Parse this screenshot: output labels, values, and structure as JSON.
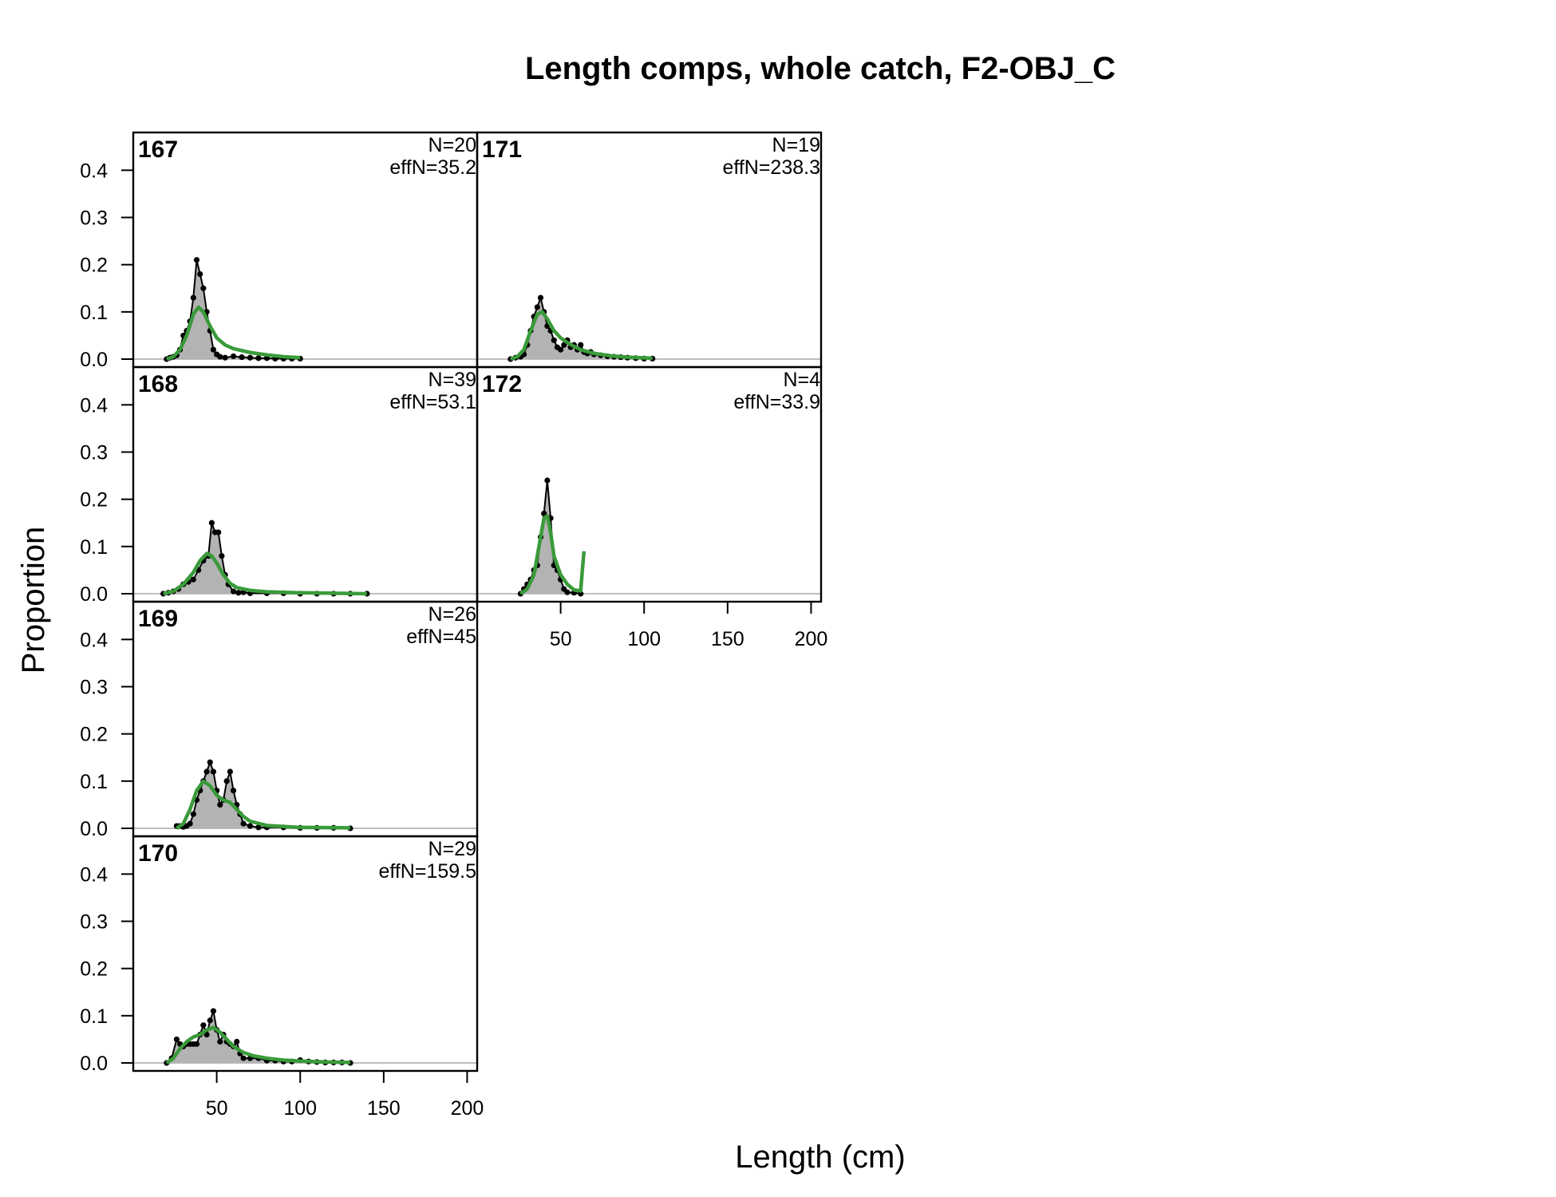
{
  "chart_data": {
    "type": "line",
    "title": "Length comps, whole catch, F2-OBJ_C",
    "xlabel": "Length (cm)",
    "ylabel": "Proportion",
    "xlim": [
      0,
      206
    ],
    "ylim": [
      0,
      0.48
    ],
    "xticks": [
      50,
      100,
      150,
      200
    ],
    "xtick_labels": [
      "50",
      "100",
      "150",
      "200"
    ],
    "yticks": [
      0.0,
      0.1,
      0.2,
      0.3,
      0.4
    ],
    "ytick_labels": [
      "0.0",
      "0.1",
      "0.2",
      "0.3",
      "0.4"
    ],
    "colors": {
      "observed_fill": "#b3b3b3",
      "observed_line": "#000000",
      "expected_line": "#3a9a3a",
      "zero_line": "#bebebe"
    },
    "panels": [
      {
        "year": "167",
        "n_label": "N=20",
        "effn_label": "effN=35.2",
        "observed": [
          [
            20,
            0
          ],
          [
            22,
            0.003
          ],
          [
            24,
            0.005
          ],
          [
            26,
            0.008
          ],
          [
            28,
            0.02
          ],
          [
            30,
            0.05
          ],
          [
            32,
            0.06
          ],
          [
            34,
            0.08
          ],
          [
            36,
            0.13
          ],
          [
            38,
            0.21
          ],
          [
            40,
            0.18
          ],
          [
            42,
            0.15
          ],
          [
            44,
            0.1
          ],
          [
            46,
            0.06
          ],
          [
            48,
            0.02
          ],
          [
            50,
            0.01
          ],
          [
            52,
            0.005
          ],
          [
            55,
            0.003
          ],
          [
            60,
            0.006
          ],
          [
            65,
            0.004
          ],
          [
            70,
            0.003
          ],
          [
            75,
            0.002
          ],
          [
            80,
            0.002
          ],
          [
            85,
            0.001
          ],
          [
            90,
            0.001
          ],
          [
            95,
            0.001
          ],
          [
            100,
            0.001
          ]
        ],
        "expected": [
          [
            20,
            0
          ],
          [
            24,
            0.005
          ],
          [
            28,
            0.02
          ],
          [
            32,
            0.05
          ],
          [
            36,
            0.095
          ],
          [
            39,
            0.11
          ],
          [
            42,
            0.1
          ],
          [
            46,
            0.07
          ],
          [
            50,
            0.045
          ],
          [
            55,
            0.03
          ],
          [
            60,
            0.022
          ],
          [
            65,
            0.018
          ],
          [
            70,
            0.014
          ],
          [
            80,
            0.009
          ],
          [
            90,
            0.005
          ],
          [
            100,
            0.003
          ]
        ]
      },
      {
        "year": "168",
        "n_label": "N=39",
        "effn_label": "effN=53.1",
        "observed": [
          [
            18,
            0
          ],
          [
            21,
            0.002
          ],
          [
            24,
            0.005
          ],
          [
            27,
            0.01
          ],
          [
            30,
            0.02
          ],
          [
            33,
            0.025
          ],
          [
            36,
            0.03
          ],
          [
            39,
            0.05
          ],
          [
            42,
            0.07
          ],
          [
            45,
            0.08
          ],
          [
            47,
            0.15
          ],
          [
            49,
            0.13
          ],
          [
            51,
            0.13
          ],
          [
            53,
            0.08
          ],
          [
            55,
            0.04
          ],
          [
            57,
            0.02
          ],
          [
            60,
            0.005
          ],
          [
            63,
            0.002
          ],
          [
            66,
            0.003
          ],
          [
            70,
            0.001
          ],
          [
            80,
            0.001
          ],
          [
            90,
            0.001
          ],
          [
            100,
            0
          ],
          [
            110,
            0
          ],
          [
            120,
            0
          ],
          [
            130,
            0
          ],
          [
            140,
            0
          ]
        ],
        "expected": [
          [
            18,
            0
          ],
          [
            24,
            0.005
          ],
          [
            30,
            0.02
          ],
          [
            36,
            0.045
          ],
          [
            40,
            0.07
          ],
          [
            44,
            0.085
          ],
          [
            47,
            0.08
          ],
          [
            50,
            0.065
          ],
          [
            54,
            0.04
          ],
          [
            58,
            0.022
          ],
          [
            62,
            0.013
          ],
          [
            70,
            0.007
          ],
          [
            80,
            0.004
          ],
          [
            100,
            0.002
          ],
          [
            140,
            0
          ]
        ]
      },
      {
        "year": "169",
        "n_label": "N=26",
        "effn_label": "effN=45",
        "observed": [
          [
            26,
            0.005
          ],
          [
            28,
            0.005
          ],
          [
            30,
            0.003
          ],
          [
            32,
            0.005
          ],
          [
            34,
            0.01
          ],
          [
            36,
            0.03
          ],
          [
            38,
            0.06
          ],
          [
            40,
            0.08
          ],
          [
            42,
            0.1
          ],
          [
            44,
            0.12
          ],
          [
            46,
            0.14
          ],
          [
            48,
            0.12
          ],
          [
            50,
            0.08
          ],
          [
            52,
            0.05
          ],
          [
            54,
            0.06
          ],
          [
            56,
            0.1
          ],
          [
            58,
            0.12
          ],
          [
            60,
            0.08
          ],
          [
            62,
            0.05
          ],
          [
            64,
            0.03
          ],
          [
            66,
            0.01
          ],
          [
            70,
            0.005
          ],
          [
            75,
            0.002
          ],
          [
            80,
            0.002
          ],
          [
            90,
            0.002
          ],
          [
            100,
            0.001
          ],
          [
            110,
            0.001
          ],
          [
            120,
            0.001
          ],
          [
            130,
            0
          ]
        ],
        "expected": [
          [
            26,
            0
          ],
          [
            30,
            0.01
          ],
          [
            34,
            0.04
          ],
          [
            38,
            0.08
          ],
          [
            42,
            0.1
          ],
          [
            46,
            0.09
          ],
          [
            50,
            0.07
          ],
          [
            54,
            0.06
          ],
          [
            58,
            0.055
          ],
          [
            62,
            0.04
          ],
          [
            66,
            0.025
          ],
          [
            70,
            0.015
          ],
          [
            80,
            0.006
          ],
          [
            100,
            0.002
          ],
          [
            130,
            0.001
          ]
        ]
      },
      {
        "year": "170",
        "n_label": "N=29",
        "effn_label": "effN=159.5",
        "observed": [
          [
            20,
            0
          ],
          [
            23,
            0.01
          ],
          [
            26,
            0.05
          ],
          [
            28,
            0.04
          ],
          [
            30,
            0.035
          ],
          [
            32,
            0.04
          ],
          [
            34,
            0.04
          ],
          [
            36,
            0.04
          ],
          [
            38,
            0.04
          ],
          [
            40,
            0.06
          ],
          [
            42,
            0.08
          ],
          [
            44,
            0.06
          ],
          [
            46,
            0.09
          ],
          [
            48,
            0.11
          ],
          [
            50,
            0.07
          ],
          [
            52,
            0.045
          ],
          [
            54,
            0.06
          ],
          [
            56,
            0.045
          ],
          [
            58,
            0.04
          ],
          [
            60,
            0.035
          ],
          [
            62,
            0.045
          ],
          [
            64,
            0.02
          ],
          [
            66,
            0.01
          ],
          [
            70,
            0.01
          ],
          [
            75,
            0.01
          ],
          [
            80,
            0.005
          ],
          [
            85,
            0.005
          ],
          [
            90,
            0.003
          ],
          [
            95,
            0.003
          ],
          [
            100,
            0.006
          ],
          [
            105,
            0.003
          ],
          [
            110,
            0.002
          ],
          [
            115,
            0.001
          ],
          [
            120,
            0.001
          ],
          [
            125,
            0.001
          ],
          [
            130,
            0
          ]
        ],
        "expected": [
          [
            20,
            0
          ],
          [
            24,
            0.01
          ],
          [
            28,
            0.03
          ],
          [
            32,
            0.045
          ],
          [
            36,
            0.055
          ],
          [
            40,
            0.06
          ],
          [
            44,
            0.07
          ],
          [
            48,
            0.075
          ],
          [
            52,
            0.065
          ],
          [
            56,
            0.05
          ],
          [
            60,
            0.035
          ],
          [
            66,
            0.022
          ],
          [
            72,
            0.015
          ],
          [
            80,
            0.01
          ],
          [
            90,
            0.006
          ],
          [
            100,
            0.004
          ],
          [
            115,
            0.002
          ],
          [
            130,
            0.001
          ]
        ]
      },
      {
        "year": "171",
        "n_label": "N=19",
        "effn_label": "effN=238.3",
        "observed": [
          [
            20,
            0
          ],
          [
            23,
            0.003
          ],
          [
            26,
            0.005
          ],
          [
            28,
            0.01
          ],
          [
            30,
            0.03
          ],
          [
            32,
            0.06
          ],
          [
            34,
            0.09
          ],
          [
            36,
            0.11
          ],
          [
            38,
            0.13
          ],
          [
            40,
            0.1
          ],
          [
            42,
            0.07
          ],
          [
            44,
            0.06
          ],
          [
            46,
            0.04
          ],
          [
            48,
            0.025
          ],
          [
            50,
            0.02
          ],
          [
            52,
            0.03
          ],
          [
            54,
            0.04
          ],
          [
            56,
            0.025
          ],
          [
            58,
            0.03
          ],
          [
            60,
            0.02
          ],
          [
            62,
            0.03
          ],
          [
            64,
            0.015
          ],
          [
            66,
            0.012
          ],
          [
            68,
            0.015
          ],
          [
            70,
            0.01
          ],
          [
            74,
            0.008
          ],
          [
            78,
            0.006
          ],
          [
            82,
            0.005
          ],
          [
            86,
            0.004
          ],
          [
            90,
            0.003
          ],
          [
            95,
            0.002
          ],
          [
            100,
            0.001
          ],
          [
            105,
            0.001
          ]
        ],
        "expected": [
          [
            20,
            0
          ],
          [
            24,
            0.005
          ],
          [
            28,
            0.02
          ],
          [
            32,
            0.06
          ],
          [
            36,
            0.095
          ],
          [
            39,
            0.1
          ],
          [
            42,
            0.085
          ],
          [
            46,
            0.06
          ],
          [
            50,
            0.045
          ],
          [
            54,
            0.035
          ],
          [
            58,
            0.027
          ],
          [
            62,
            0.02
          ],
          [
            70,
            0.012
          ],
          [
            80,
            0.007
          ],
          [
            90,
            0.004
          ],
          [
            105,
            0.002
          ]
        ]
      },
      {
        "year": "172",
        "n_label": "N=4",
        "effn_label": "effN=33.9",
        "observed": [
          [
            26,
            0
          ],
          [
            28,
            0.01
          ],
          [
            30,
            0.02
          ],
          [
            32,
            0.03
          ],
          [
            34,
            0.05
          ],
          [
            36,
            0.06
          ],
          [
            38,
            0.12
          ],
          [
            40,
            0.17
          ],
          [
            42,
            0.24
          ],
          [
            44,
            0.16
          ],
          [
            46,
            0.06
          ],
          [
            48,
            0.05
          ],
          [
            50,
            0.03
          ],
          [
            52,
            0.01
          ],
          [
            54,
            0.003
          ],
          [
            58,
            0.002
          ],
          [
            62,
            0
          ]
        ],
        "expected": [
          [
            26,
            0
          ],
          [
            30,
            0.01
          ],
          [
            34,
            0.04
          ],
          [
            37,
            0.1
          ],
          [
            40,
            0.16
          ],
          [
            42,
            0.165
          ],
          [
            44,
            0.13
          ],
          [
            46,
            0.08
          ],
          [
            50,
            0.04
          ],
          [
            54,
            0.02
          ],
          [
            58,
            0.008
          ],
          [
            62,
            0.006
          ],
          [
            63,
            0.05
          ],
          [
            64,
            0.09
          ]
        ]
      }
    ]
  }
}
